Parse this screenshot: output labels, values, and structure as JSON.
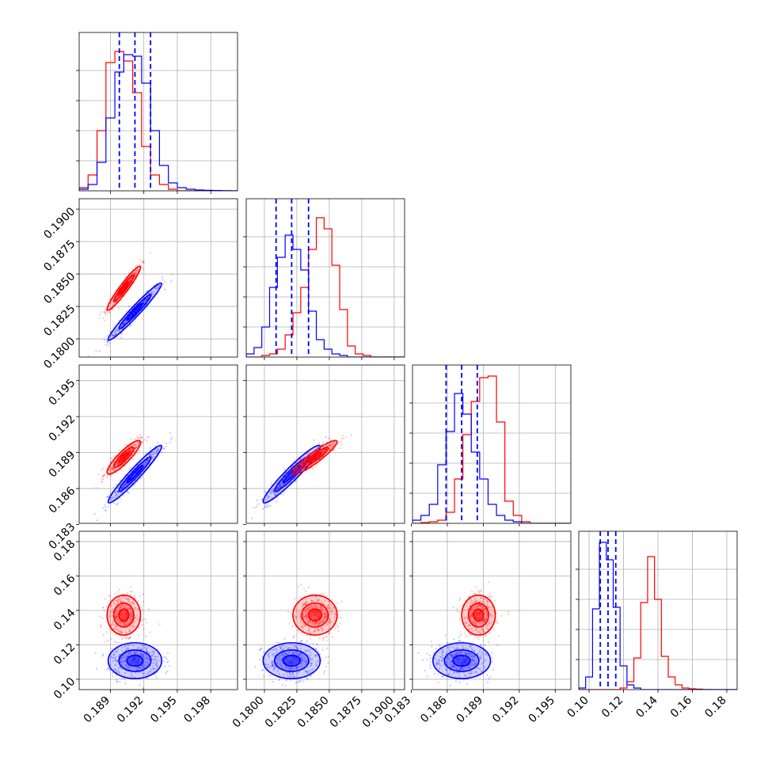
{
  "chart_data": {
    "type": "corner",
    "parameters": 4,
    "grid": true,
    "series_colors": [
      "#ff0000",
      "#0000ff"
    ],
    "quantile_color": "#0000ff",
    "axes": [
      {
        "range": [
          0.1862,
          0.2004
        ],
        "ticks": [
          0.189,
          0.192,
          0.195,
          0.198
        ],
        "tick_labels": [
          "0.189",
          "0.192",
          "0.195",
          "0.198"
        ],
        "marginal": {
          "bins": [
            0.1862,
            0.187,
            0.1878,
            0.1886,
            0.1894,
            0.1902,
            0.191,
            0.1918,
            0.1926,
            0.1934,
            0.1942,
            0.195,
            0.1958,
            0.1966,
            0.1974,
            0.1982,
            0.199,
            0.1998,
            0.2004
          ],
          "red": [
            0.02,
            0.1,
            0.38,
            0.81,
            0.88,
            0.82,
            0.62,
            0.28,
            0.1,
            0.04,
            0.01,
            0,
            0,
            0,
            0,
            0,
            0,
            0
          ],
          "blue": [
            0.01,
            0.04,
            0.18,
            0.46,
            0.75,
            0.86,
            0.85,
            0.68,
            0.38,
            0.16,
            0.05,
            0.02,
            0.01,
            0.005,
            0.003,
            0.002,
            0.001,
            0
          ],
          "quantiles": [
            0.1898,
            0.1912,
            0.1926
          ]
        }
      },
      {
        "range": [
          0.1786,
          0.1908
        ],
        "ticks": [
          0.18,
          0.1825,
          0.185,
          0.1875,
          0.19
        ],
        "tick_labels": [
          "0.1800",
          "0.1825",
          "0.1850",
          "0.1875",
          "0.1900"
        ],
        "marginal": {
          "bins": [
            0.1786,
            0.1792,
            0.1798,
            0.1804,
            0.181,
            0.1816,
            0.1822,
            0.1828,
            0.1834,
            0.184,
            0.1846,
            0.1852,
            0.1858,
            0.1864,
            0.187,
            0.1876,
            0.1882,
            0.1888,
            0.1894,
            0.19,
            0.1908
          ],
          "red": [
            0,
            0,
            0.01,
            0.02,
            0.05,
            0.14,
            0.28,
            0.44,
            0.68,
            0.88,
            0.81,
            0.58,
            0.3,
            0.07,
            0.02,
            0.01,
            0,
            0,
            0,
            0
          ],
          "blue": [
            0.02,
            0.06,
            0.19,
            0.44,
            0.63,
            0.77,
            0.68,
            0.55,
            0.29,
            0.11,
            0.05,
            0.02,
            0.01,
            0,
            0,
            0,
            0,
            0,
            0,
            0
          ],
          "quantiles": [
            0.1809,
            0.1821,
            0.1834
          ]
        }
      },
      {
        "range": [
          0.1831,
          0.1963
        ],
        "ticks": [
          0.183,
          0.186,
          0.189,
          0.192,
          0.195
        ],
        "tick_labels": [
          "0.183",
          "0.186",
          "0.189",
          "0.192",
          "0.195"
        ],
        "marginal": {
          "bins": [
            0.1831,
            0.1838,
            0.1845,
            0.1852,
            0.1859,
            0.1866,
            0.1873,
            0.188,
            0.1887,
            0.1894,
            0.1901,
            0.1908,
            0.1915,
            0.1922,
            0.1929,
            0.1936,
            0.1943,
            0.195,
            0.1957,
            0.1963
          ],
          "red": [
            0,
            0.005,
            0.01,
            0.02,
            0.07,
            0.28,
            0.56,
            0.77,
            0.92,
            0.93,
            0.64,
            0.14,
            0.05,
            0.01,
            0,
            0,
            0,
            0,
            0
          ],
          "blue": [
            0.02,
            0.05,
            0.12,
            0.37,
            0.58,
            0.82,
            0.69,
            0.45,
            0.28,
            0.12,
            0.05,
            0.02,
            0.01,
            0,
            0,
            0,
            0,
            0,
            0
          ],
          "quantiles": [
            0.1859,
            0.1872,
            0.1885
          ]
        }
      },
      {
        "range": [
          0.094,
          0.186
        ],
        "ticks": [
          0.1,
          0.12,
          0.14,
          0.16,
          0.18
        ],
        "tick_labels": [
          "0.10",
          "0.12",
          "0.14",
          "0.16",
          "0.18"
        ],
        "marginal": {
          "bins": [
            0.094,
            0.098,
            0.102,
            0.106,
            0.11,
            0.114,
            0.118,
            0.122,
            0.126,
            0.13,
            0.134,
            0.138,
            0.142,
            0.146,
            0.15,
            0.154,
            0.158,
            0.162,
            0.166,
            0.17,
            0.174,
            0.178,
            0.182,
            0.186
          ],
          "red": [
            0,
            0,
            0,
            0,
            0,
            0,
            0.01,
            0.05,
            0.2,
            0.55,
            0.84,
            0.57,
            0.21,
            0.08,
            0.03,
            0.01,
            0.005,
            0.003,
            0.001,
            0,
            0,
            0,
            0
          ],
          "blue": [
            0.01,
            0.08,
            0.51,
            0.93,
            0.82,
            0.52,
            0.15,
            0.03,
            0.01,
            0,
            0,
            0,
            0,
            0,
            0,
            0,
            0,
            0,
            0,
            0,
            0,
            0,
            0
          ],
          "quantiles": [
            0.1065,
            0.111,
            0.1155
          ]
        }
      }
    ],
    "posteriors": {
      "red": {
        "mean": [
          0.1902,
          0.1839,
          0.1886,
          0.1373
        ],
        "sd": [
          0.00075,
          0.00085,
          0.0007,
          0.0058
        ],
        "corr": [
          [
            1,
            0.95,
            0.88,
            0
          ],
          [
            0.95,
            1,
            0.92,
            0
          ],
          [
            0.88,
            0.92,
            1,
            0
          ],
          [
            0,
            0,
            0,
            1
          ]
        ]
      },
      "blue": {
        "mean": [
          0.1912,
          0.1821,
          0.1872,
          0.1108
        ],
        "sd": [
          0.0012,
          0.0011,
          0.0012,
          0.0052
        ],
        "corr": [
          [
            1,
            0.97,
            0.96,
            0
          ],
          [
            0.97,
            1,
            0.95,
            0
          ],
          [
            0.96,
            0.95,
            1,
            0
          ],
          [
            0,
            0,
            0,
            1
          ]
        ]
      }
    }
  }
}
